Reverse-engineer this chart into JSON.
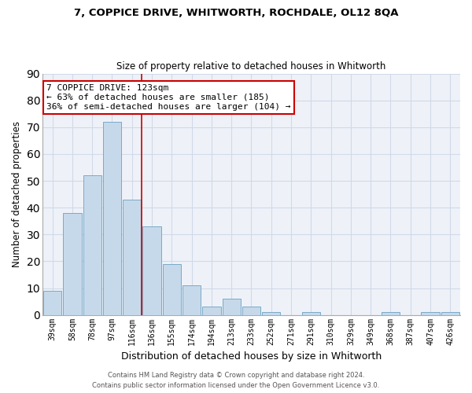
{
  "title1": "7, COPPICE DRIVE, WHITWORTH, ROCHDALE, OL12 8QA",
  "title2": "Size of property relative to detached houses in Whitworth",
  "xlabel": "Distribution of detached houses by size in Whitworth",
  "ylabel": "Number of detached properties",
  "categories": [
    "39sqm",
    "58sqm",
    "78sqm",
    "97sqm",
    "116sqm",
    "136sqm",
    "155sqm",
    "174sqm",
    "194sqm",
    "213sqm",
    "233sqm",
    "252sqm",
    "271sqm",
    "291sqm",
    "310sqm",
    "329sqm",
    "349sqm",
    "368sqm",
    "387sqm",
    "407sqm",
    "426sqm"
  ],
  "values": [
    9,
    38,
    52,
    72,
    43,
    33,
    19,
    11,
    3,
    6,
    3,
    1,
    0,
    1,
    0,
    0,
    0,
    1,
    0,
    1,
    1
  ],
  "bar_color": "#c6d9ea",
  "bar_edge_color": "#7aaac8",
  "bar_edge_width": 0.7,
  "vline_x_index": 4,
  "vline_color": "#cc0000",
  "annotation_text": "7 COPPICE DRIVE: 123sqm\n← 63% of detached houses are smaller (185)\n36% of semi-detached houses are larger (104) →",
  "annotation_box_color": "#ffffff",
  "annotation_box_edge_color": "#cc0000",
  "ylim": [
    0,
    90
  ],
  "yticks": [
    0,
    10,
    20,
    30,
    40,
    50,
    60,
    70,
    80,
    90
  ],
  "grid_color": "#d0dae8",
  "bg_color": "#eef2f8",
  "footer1": "Contains HM Land Registry data © Crown copyright and database right 2024.",
  "footer2": "Contains public sector information licensed under the Open Government Licence v3.0."
}
